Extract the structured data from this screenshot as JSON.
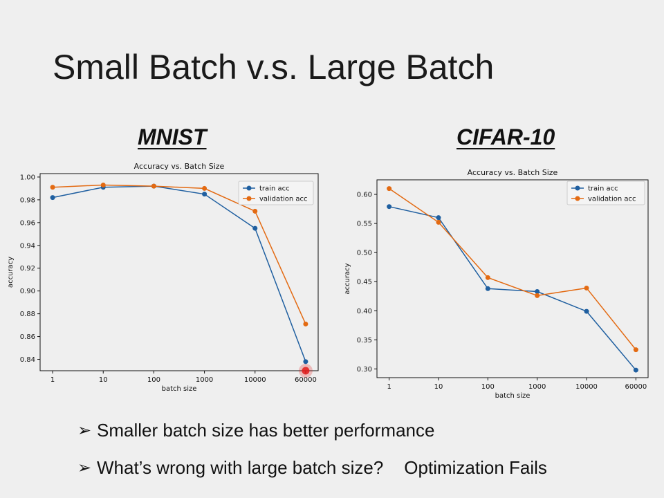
{
  "slide": {
    "title": "Small Batch v.s. Large Batch",
    "bullets": [
      {
        "text": "Smaller batch size has better performance",
        "extra": ""
      },
      {
        "text": "What’s wrong with large batch size?",
        "extra": "Optimization Fails"
      }
    ],
    "bullet_icon": "arrow-bullet-icon",
    "highlight_color": "#e31a1a"
  },
  "chart_data": [
    {
      "dataset_label": "MNIST",
      "type": "line",
      "title": "Accuracy vs. Batch Size",
      "xlabel": "batch size",
      "ylabel": "accuracy",
      "categories": [
        "1",
        "10",
        "100",
        "1000",
        "10000",
        "60000"
      ],
      "ylim": [
        0.83,
        1.003
      ],
      "yticks": [
        0.84,
        0.86,
        0.88,
        0.9,
        0.92,
        0.94,
        0.96,
        0.98,
        1.0
      ],
      "ytick_decimals": 2,
      "legend_position": "top-right",
      "highlight_last": true,
      "series": [
        {
          "name": "train acc",
          "color": "#1f5fa0",
          "values": [
            0.982,
            0.991,
            0.992,
            0.985,
            0.955,
            0.838
          ]
        },
        {
          "name": "validation acc",
          "color": "#e36a12",
          "values": [
            0.991,
            0.993,
            0.992,
            0.99,
            0.97,
            0.871
          ]
        }
      ]
    },
    {
      "dataset_label": "CIFAR-10",
      "type": "line",
      "title": "Accuracy vs. Batch Size",
      "xlabel": "batch size",
      "ylabel": "accuracy",
      "categories": [
        "1",
        "10",
        "100",
        "1000",
        "10000",
        "60000"
      ],
      "ylim": [
        0.285,
        0.625
      ],
      "yticks": [
        0.3,
        0.35,
        0.4,
        0.45,
        0.5,
        0.55,
        0.6
      ],
      "ytick_decimals": 2,
      "legend_position": "top-right",
      "highlight_last": false,
      "series": [
        {
          "name": "train acc",
          "color": "#1f5fa0",
          "values": [
            0.579,
            0.56,
            0.438,
            0.433,
            0.399,
            0.298
          ]
        },
        {
          "name": "validation acc",
          "color": "#e36a12",
          "values": [
            0.61,
            0.552,
            0.457,
            0.426,
            0.439,
            0.333
          ]
        }
      ]
    }
  ]
}
